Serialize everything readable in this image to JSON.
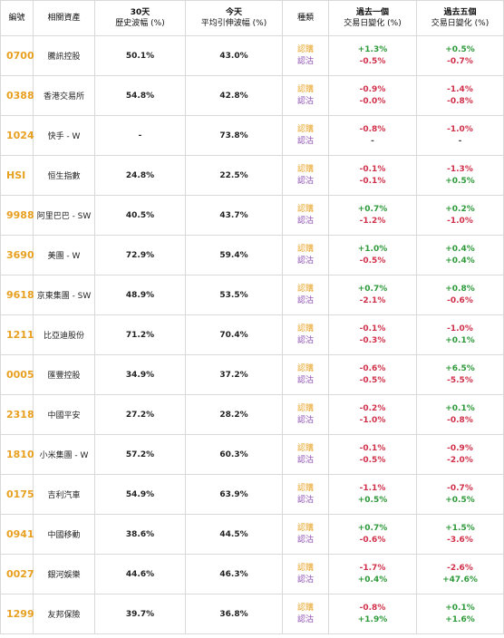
{
  "headers": {
    "code": "編號",
    "asset": "相關資產",
    "hist_vol": [
      "30天",
      "歷史波幅 (%)"
    ],
    "implied_vol": [
      "今天",
      "平均引伸波幅 (%)"
    ],
    "kind": "種類",
    "chg1": [
      "過去一個",
      "交易日變化 (%)"
    ],
    "chg5": [
      "過去五個",
      "交易日變化 (%)"
    ]
  },
  "kinds": {
    "call": "認購",
    "put": "認沽"
  },
  "rows": [
    {
      "code": "0700",
      "name": "騰訊控股",
      "hist": "50.1%",
      "implied": "43.0%",
      "c1": "+1.3%",
      "p1": "-0.5%",
      "c5": "+0.5%",
      "p5": "-0.7%"
    },
    {
      "code": "0388",
      "name": "香港交易所",
      "hist": "54.8%",
      "implied": "42.8%",
      "c1": "-0.9%",
      "p1": "-0.0%",
      "c5": "-1.4%",
      "p5": "-0.8%"
    },
    {
      "code": "1024",
      "name": "快手 - W",
      "hist": "-",
      "implied": "73.8%",
      "c1": "-0.8%",
      "p1": "-",
      "c5": "-1.0%",
      "p5": "-"
    },
    {
      "code": "HSI",
      "name": "恒生指數",
      "hist": "24.8%",
      "implied": "22.5%",
      "c1": "-0.1%",
      "p1": "-0.1%",
      "c5": "-1.3%",
      "p5": "+0.5%"
    },
    {
      "code": "9988",
      "name": "阿里巴巴 - SW",
      "hist": "40.5%",
      "implied": "43.7%",
      "c1": "+0.7%",
      "p1": "-1.2%",
      "c5": "+0.2%",
      "p5": "-1.0%"
    },
    {
      "code": "3690",
      "name": "美團 - W",
      "hist": "72.9%",
      "implied": "59.4%",
      "c1": "+1.0%",
      "p1": "-0.5%",
      "c5": "+0.4%",
      "p5": "+0.4%"
    },
    {
      "code": "9618",
      "name": "京東集團 - SW",
      "hist": "48.9%",
      "implied": "53.5%",
      "c1": "+0.7%",
      "p1": "-2.1%",
      "c5": "+0.8%",
      "p5": "-0.6%"
    },
    {
      "code": "1211",
      "name": "比亞迪股份",
      "hist": "71.2%",
      "implied": "70.4%",
      "c1": "-0.1%",
      "p1": "-0.3%",
      "c5": "-1.0%",
      "p5": "+0.1%"
    },
    {
      "code": "0005",
      "name": "匯豐控股",
      "hist": "34.9%",
      "implied": "37.2%",
      "c1": "-0.6%",
      "p1": "-0.5%",
      "c5": "+6.5%",
      "p5": "-5.5%"
    },
    {
      "code": "2318",
      "name": "中國平安",
      "hist": "27.2%",
      "implied": "28.2%",
      "c1": "-0.2%",
      "p1": "-1.0%",
      "c5": "+0.1%",
      "p5": "-0.8%"
    },
    {
      "code": "1810",
      "name": "小米集團 - W",
      "hist": "57.2%",
      "implied": "60.3%",
      "c1": "-0.1%",
      "p1": "-0.5%",
      "c5": "-0.9%",
      "p5": "-2.0%"
    },
    {
      "code": "0175",
      "name": "吉利汽車",
      "hist": "54.9%",
      "implied": "63.9%",
      "c1": "-1.1%",
      "p1": "+0.5%",
      "c5": "-0.7%",
      "p5": "+0.5%"
    },
    {
      "code": "0941",
      "name": "中國移動",
      "hist": "38.6%",
      "implied": "44.5%",
      "c1": "+0.7%",
      "p1": "-0.6%",
      "c5": "+1.5%",
      "p5": "-3.6%"
    },
    {
      "code": "0027",
      "name": "銀河娛樂",
      "hist": "44.6%",
      "implied": "46.3%",
      "c1": "-1.7%",
      "p1": "+0.4%",
      "c5": "-2.6%",
      "p5": "+47.6%"
    },
    {
      "code": "1299",
      "name": "友邦保險",
      "hist": "39.7%",
      "implied": "36.8%",
      "c1": "-0.8%",
      "p1": "+1.9%",
      "c5": "+0.1%",
      "p5": "+1.6%"
    }
  ]
}
